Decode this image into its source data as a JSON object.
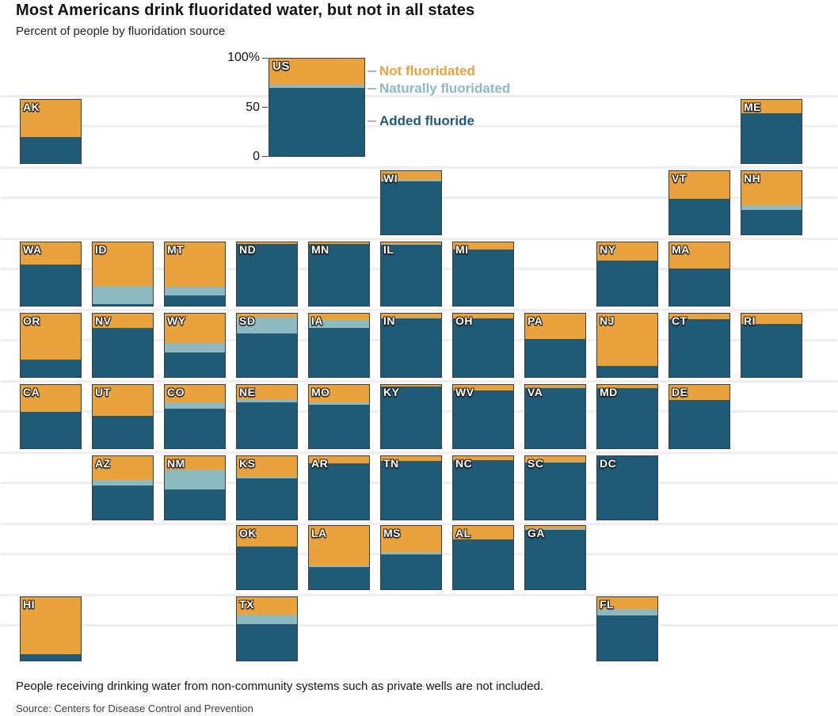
{
  "title": "Most Americans drink fluoridated water, but not in all states",
  "subtitle": "Percent of people by fluoridation source",
  "footnote": "People receiving drinking water from non-community systems such as private wells are not included.",
  "source": "Source: Centers for Disease Control and Prevention",
  "colors": {
    "not_fluoridated": "#E9A23C",
    "naturally_fluoridated": "#8DB9C0",
    "added_fluoride": "#1F5B77"
  },
  "legend": [
    {
      "label": "Not fluoridated",
      "key": "not_fluoridated"
    },
    {
      "label": "Naturally fluoridated",
      "key": "naturally_fluoridated"
    },
    {
      "label": "Added fluoride",
      "key": "added_fluoride"
    }
  ],
  "axis": {
    "ticks": [
      "100%",
      "50",
      "0"
    ]
  },
  "chart_data": {
    "type": "bar",
    "subtype": "tile-cartogram-of-stacked-100pct-bars",
    "unit": "percent of people",
    "segments_top_to_bottom": [
      "not_fluoridated",
      "naturally_fluoridated",
      "added_fluoride"
    ],
    "us": {
      "code": "US",
      "not_fluoridated": 27,
      "naturally_fluoridated": 3,
      "added_fluoride": 70
    },
    "states": [
      {
        "code": "AK",
        "row": 0,
        "col": 0,
        "not_fluoridated": 59,
        "naturally_fluoridated": 0,
        "added_fluoride": 41
      },
      {
        "code": "ME",
        "row": 0,
        "col": 10,
        "not_fluoridated": 21,
        "naturally_fluoridated": 0,
        "added_fluoride": 79
      },
      {
        "code": "WI",
        "row": 1,
        "col": 5,
        "not_fluoridated": 14,
        "naturally_fluoridated": 2,
        "added_fluoride": 84
      },
      {
        "code": "VT",
        "row": 1,
        "col": 9,
        "not_fluoridated": 44,
        "naturally_fluoridated": 0,
        "added_fluoride": 56
      },
      {
        "code": "NH",
        "row": 1,
        "col": 10,
        "not_fluoridated": 54,
        "naturally_fluoridated": 7,
        "added_fluoride": 39
      },
      {
        "code": "WA",
        "row": 2,
        "col": 0,
        "not_fluoridated": 35,
        "naturally_fluoridated": 0,
        "added_fluoride": 65
      },
      {
        "code": "ID",
        "row": 2,
        "col": 1,
        "not_fluoridated": 69,
        "naturally_fluoridated": 28,
        "added_fluoride": 3
      },
      {
        "code": "MT",
        "row": 2,
        "col": 2,
        "not_fluoridated": 70,
        "naturally_fluoridated": 14,
        "added_fluoride": 16
      },
      {
        "code": "ND",
        "row": 2,
        "col": 3,
        "not_fluoridated": 3,
        "naturally_fluoridated": 0,
        "added_fluoride": 97
      },
      {
        "code": "MN",
        "row": 2,
        "col": 4,
        "not_fluoridated": 2,
        "naturally_fluoridated": 0,
        "added_fluoride": 98
      },
      {
        "code": "IL",
        "row": 2,
        "col": 5,
        "not_fluoridated": 2,
        "naturally_fluoridated": 2,
        "added_fluoride": 96
      },
      {
        "code": "MI",
        "row": 2,
        "col": 6,
        "not_fluoridated": 11,
        "naturally_fluoridated": 0,
        "added_fluoride": 89
      },
      {
        "code": "NY",
        "row": 2,
        "col": 8,
        "not_fluoridated": 29,
        "naturally_fluoridated": 0,
        "added_fluoride": 71
      },
      {
        "code": "MA",
        "row": 2,
        "col": 9,
        "not_fluoridated": 41,
        "naturally_fluoridated": 0,
        "added_fluoride": 59
      },
      {
        "code": "OR",
        "row": 3,
        "col": 0,
        "not_fluoridated": 73,
        "naturally_fluoridated": 0,
        "added_fluoride": 27
      },
      {
        "code": "NV",
        "row": 3,
        "col": 1,
        "not_fluoridated": 22,
        "naturally_fluoridated": 0,
        "added_fluoride": 78
      },
      {
        "code": "WY",
        "row": 3,
        "col": 2,
        "not_fluoridated": 46,
        "naturally_fluoridated": 15,
        "added_fluoride": 39
      },
      {
        "code": "SD",
        "row": 3,
        "col": 3,
        "not_fluoridated": 5,
        "naturally_fluoridated": 26,
        "added_fluoride": 69
      },
      {
        "code": "IA",
        "row": 3,
        "col": 4,
        "not_fluoridated": 10,
        "naturally_fluoridated": 13,
        "added_fluoride": 77
      },
      {
        "code": "IN",
        "row": 3,
        "col": 5,
        "not_fluoridated": 6,
        "naturally_fluoridated": 2,
        "added_fluoride": 92
      },
      {
        "code": "OH",
        "row": 3,
        "col": 6,
        "not_fluoridated": 8,
        "naturally_fluoridated": 0,
        "added_fluoride": 92
      },
      {
        "code": "PA",
        "row": 3,
        "col": 7,
        "not_fluoridated": 40,
        "naturally_fluoridated": 0,
        "added_fluoride": 60
      },
      {
        "code": "NJ",
        "row": 3,
        "col": 8,
        "not_fluoridated": 82,
        "naturally_fluoridated": 0,
        "added_fluoride": 18
      },
      {
        "code": "CT",
        "row": 3,
        "col": 9,
        "not_fluoridated": 9,
        "naturally_fluoridated": 0,
        "added_fluoride": 91
      },
      {
        "code": "RI",
        "row": 3,
        "col": 10,
        "not_fluoridated": 16,
        "naturally_fluoridated": 0,
        "added_fluoride": 84
      },
      {
        "code": "CA",
        "row": 4,
        "col": 0,
        "not_fluoridated": 42,
        "naturally_fluoridated": 0,
        "added_fluoride": 58
      },
      {
        "code": "UT",
        "row": 4,
        "col": 1,
        "not_fluoridated": 49,
        "naturally_fluoridated": 0,
        "added_fluoride": 51
      },
      {
        "code": "CO",
        "row": 4,
        "col": 2,
        "not_fluoridated": 27,
        "naturally_fluoridated": 10,
        "added_fluoride": 63
      },
      {
        "code": "NE",
        "row": 4,
        "col": 3,
        "not_fluoridated": 23,
        "naturally_fluoridated": 4,
        "added_fluoride": 73
      },
      {
        "code": "MO",
        "row": 4,
        "col": 4,
        "not_fluoridated": 27,
        "naturally_fluoridated": 4,
        "added_fluoride": 69
      },
      {
        "code": "KY",
        "row": 4,
        "col": 5,
        "not_fluoridated": 3,
        "naturally_fluoridated": 0,
        "added_fluoride": 97
      },
      {
        "code": "WV",
        "row": 4,
        "col": 6,
        "not_fluoridated": 9,
        "naturally_fluoridated": 0,
        "added_fluoride": 91
      },
      {
        "code": "VA",
        "row": 4,
        "col": 7,
        "not_fluoridated": 4,
        "naturally_fluoridated": 1,
        "added_fluoride": 95
      },
      {
        "code": "MD",
        "row": 4,
        "col": 8,
        "not_fluoridated": 5,
        "naturally_fluoridated": 0,
        "added_fluoride": 95
      },
      {
        "code": "DE",
        "row": 4,
        "col": 9,
        "not_fluoridated": 24,
        "naturally_fluoridated": 0,
        "added_fluoride": 76
      },
      {
        "code": "AZ",
        "row": 5,
        "col": 1,
        "not_fluoridated": 37,
        "naturally_fluoridated": 9,
        "added_fluoride": 54
      },
      {
        "code": "NM",
        "row": 5,
        "col": 2,
        "not_fluoridated": 21,
        "naturally_fluoridated": 32,
        "added_fluoride": 47
      },
      {
        "code": "KS",
        "row": 5,
        "col": 3,
        "not_fluoridated": 33,
        "naturally_fluoridated": 2,
        "added_fluoride": 65
      },
      {
        "code": "AR",
        "row": 5,
        "col": 4,
        "not_fluoridated": 11,
        "naturally_fluoridated": 0,
        "added_fluoride": 89
      },
      {
        "code": "TN",
        "row": 5,
        "col": 5,
        "not_fluoridated": 7,
        "naturally_fluoridated": 0,
        "added_fluoride": 93
      },
      {
        "code": "NC",
        "row": 5,
        "col": 6,
        "not_fluoridated": 6,
        "naturally_fluoridated": 0,
        "added_fluoride": 94
      },
      {
        "code": "SC",
        "row": 5,
        "col": 7,
        "not_fluoridated": 9,
        "naturally_fluoridated": 1,
        "added_fluoride": 90
      },
      {
        "code": "DC",
        "row": 5,
        "col": 8,
        "not_fluoridated": 0,
        "naturally_fluoridated": 0,
        "added_fluoride": 100
      },
      {
        "code": "OK",
        "row": 6,
        "col": 3,
        "not_fluoridated": 33,
        "naturally_fluoridated": 0,
        "added_fluoride": 67
      },
      {
        "code": "LA",
        "row": 6,
        "col": 4,
        "not_fluoridated": 63,
        "naturally_fluoridated": 2,
        "added_fluoride": 35
      },
      {
        "code": "MS",
        "row": 6,
        "col": 5,
        "not_fluoridated": 41,
        "naturally_fluoridated": 4,
        "added_fluoride": 55
      },
      {
        "code": "AL",
        "row": 6,
        "col": 6,
        "not_fluoridated": 21,
        "naturally_fluoridated": 0,
        "added_fluoride": 79
      },
      {
        "code": "GA",
        "row": 6,
        "col": 7,
        "not_fluoridated": 4,
        "naturally_fluoridated": 2,
        "added_fluoride": 94
      },
      {
        "code": "HI",
        "row": 7,
        "col": 0,
        "not_fluoridated": 90,
        "naturally_fluoridated": 0,
        "added_fluoride": 10
      },
      {
        "code": "TX",
        "row": 7,
        "col": 3,
        "not_fluoridated": 28,
        "naturally_fluoridated": 14,
        "added_fluoride": 58
      },
      {
        "code": "FL",
        "row": 7,
        "col": 8,
        "not_fluoridated": 19,
        "naturally_fluoridated": 10,
        "added_fluoride": 71
      }
    ]
  }
}
